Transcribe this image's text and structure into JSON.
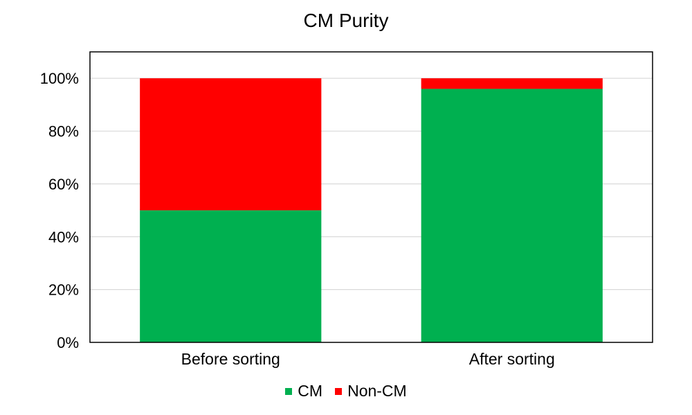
{
  "chart_data": {
    "type": "bar",
    "stacked": true,
    "title": "CM Purity",
    "categories": [
      "Before sorting",
      "After sorting"
    ],
    "series": [
      {
        "name": "CM",
        "values": [
          50,
          96
        ],
        "color": "#00b050"
      },
      {
        "name": "Non-CM",
        "values": [
          50,
          4
        ],
        "color": "#ff0000"
      }
    ],
    "ylim": [
      0,
      110
    ],
    "yticks": [
      0,
      20,
      40,
      60,
      80,
      100
    ],
    "ytick_format": "%",
    "grid": true,
    "legend_position": "bottom"
  }
}
